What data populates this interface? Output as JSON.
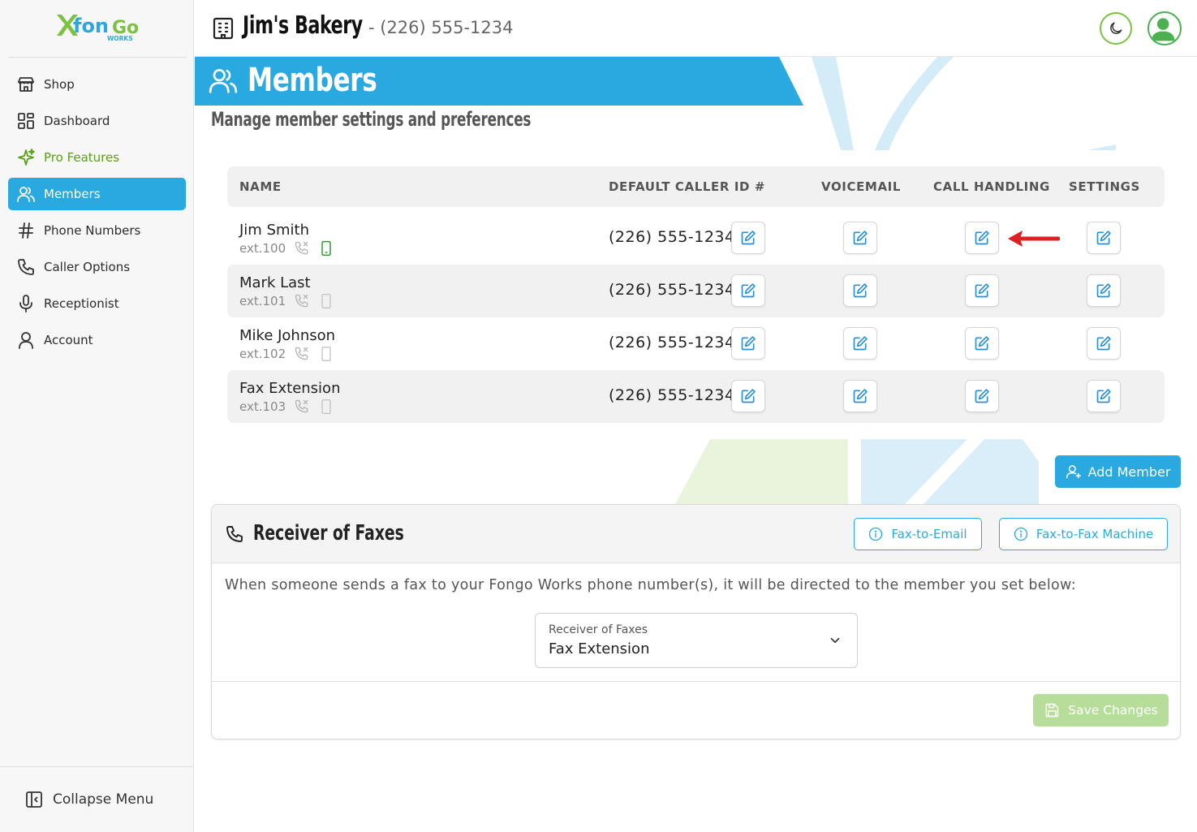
{
  "brand": {
    "logo_text": "fonGo",
    "logo_sub": "WORKS"
  },
  "sidebar": {
    "items": [
      {
        "label": "Shop",
        "icon": "store-icon"
      },
      {
        "label": "Dashboard",
        "icon": "dashboard-icon"
      },
      {
        "label": "Pro Features",
        "icon": "sparkle-icon"
      },
      {
        "label": "Members",
        "icon": "users-icon"
      },
      {
        "label": "Phone Numbers",
        "icon": "hash-icon"
      },
      {
        "label": "Caller Options",
        "icon": "phone-icon"
      },
      {
        "label": "Receptionist",
        "icon": "microphone-icon"
      },
      {
        "label": "Account",
        "icon": "user-icon"
      }
    ],
    "collapse_label": "Collapse Menu"
  },
  "header": {
    "business_name": "Jim's Bakery",
    "business_phone": "- (226) 555-1234"
  },
  "page": {
    "title": "Members",
    "subtitle": "Manage member settings and preferences"
  },
  "table": {
    "columns": {
      "name": "NAME",
      "caller_id": "DEFAULT CALLER ID #",
      "voicemail": "VOICEMAIL",
      "call_handling": "CALL HANDLING",
      "settings": "SETTINGS"
    },
    "rows": [
      {
        "name": "Jim Smith",
        "ext": "ext.100",
        "caller_id": "(226) 555-1234",
        "mobile_active": true
      },
      {
        "name": "Mark Last",
        "ext": "ext.101",
        "caller_id": "(226) 555-1234",
        "mobile_active": false
      },
      {
        "name": "Mike Johnson",
        "ext": "ext.102",
        "caller_id": "(226) 555-1234",
        "mobile_active": false
      },
      {
        "name": "Fax Extension",
        "ext": "ext.103",
        "caller_id": "(226) 555-1234",
        "mobile_active": false
      }
    ]
  },
  "add_member_label": "Add Member",
  "fax": {
    "title": "Receiver of Faxes",
    "fax_to_email_label": "Fax-to-Email",
    "fax_to_fax_label": "Fax-to-Fax Machine",
    "description": "When someone sends a fax to your Fongo Works phone number(s), it will be directed to the member you set below:",
    "select_label": "Receiver of Faxes",
    "select_value": "Fax Extension",
    "save_label": "Save Changes"
  },
  "colors": {
    "accent": "#2aa9e0",
    "pro": "#5aa01a",
    "save_disabled": "#b7dd9a",
    "arrow": "#e02020"
  }
}
